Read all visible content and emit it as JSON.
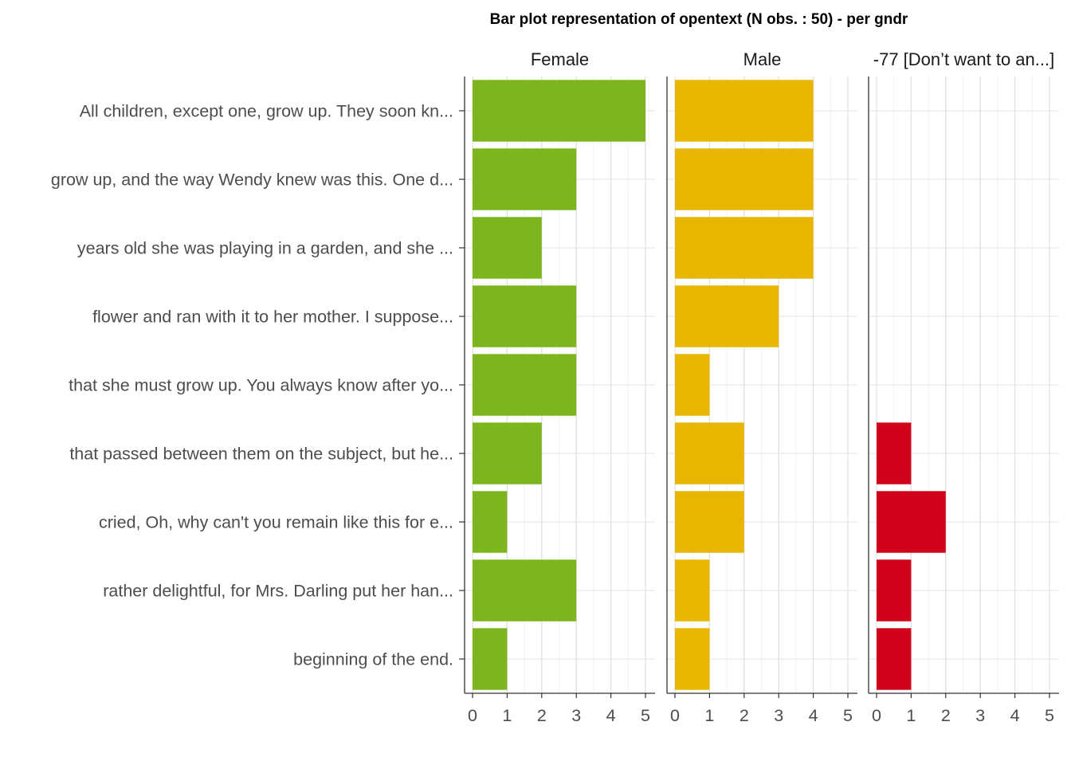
{
  "chart_data": {
    "type": "bar",
    "orientation": "horizontal",
    "title": "Bar plot representation of opentext (N obs. : 50) - per gndr",
    "xlabel": "",
    "ylabel": "",
    "xlim": [
      0,
      5
    ],
    "x_ticks": [
      "0",
      "1",
      "2",
      "3",
      "4",
      "5"
    ],
    "grid": true,
    "categories": [
      "All children, except one, grow up. They soon kn...",
      "grow up, and the way Wendy knew was this. One d...",
      "years old she was playing in a garden, and she ...",
      "flower and ran with it to her mother. I suppose...",
      "that she must grow up. You always know after yo...",
      "that passed between them on the subject, but he...",
      "cried, Oh, why can't you remain like this for e...",
      "rather delightful, for Mrs. Darling put her han...",
      "beginning of the end."
    ],
    "series": [
      {
        "name": "Female",
        "color": "#7cb51d",
        "values": [
          5,
          3,
          2,
          3,
          3,
          2,
          1,
          3,
          1
        ]
      },
      {
        "name": "Male",
        "color": "#e8b500",
        "values": [
          4,
          4,
          4,
          3,
          1,
          2,
          2,
          1,
          1
        ]
      },
      {
        "name": "-77 [Don’t want to an...]",
        "color": "#d0021b",
        "values": [
          0,
          0,
          0,
          0,
          0,
          1,
          2,
          1,
          1
        ]
      }
    ]
  }
}
